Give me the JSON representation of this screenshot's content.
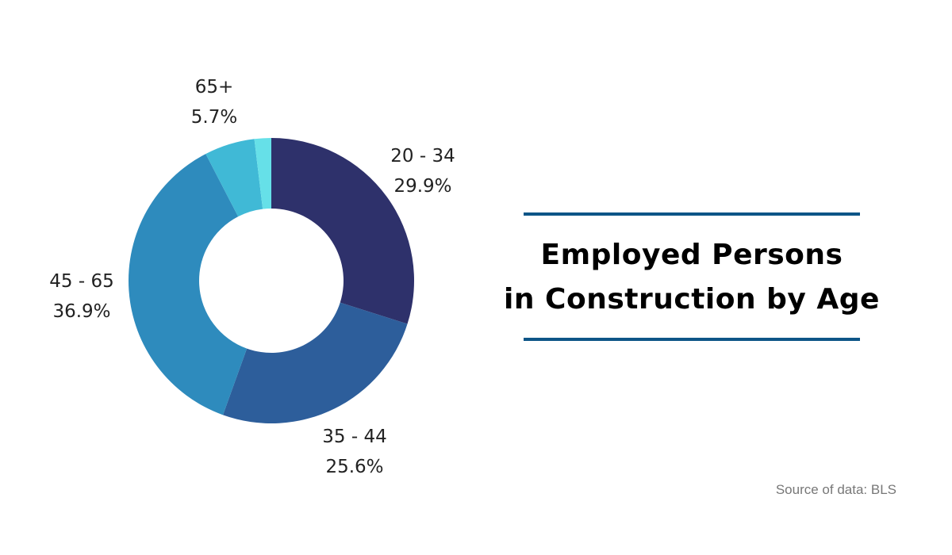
{
  "chart_data": {
    "type": "pie",
    "style": "donut",
    "title_lines": [
      "Employed Persons",
      "in Construction by Age"
    ],
    "categories": [
      "20 - 34",
      "35 - 44",
      "45 - 65",
      "65+",
      ""
    ],
    "values": [
      29.9,
      25.6,
      36.9,
      5.7,
      1.9
    ],
    "labels": [
      "29.9%",
      "25.6%",
      "36.9%",
      "5.7%",
      ""
    ],
    "colors": [
      "#2e316b",
      "#2d5e9b",
      "#2e8bbd",
      "#40b9d6",
      "#66e0e8"
    ]
  },
  "source": "Source of data: BLS",
  "accent_color": "#0d5587"
}
